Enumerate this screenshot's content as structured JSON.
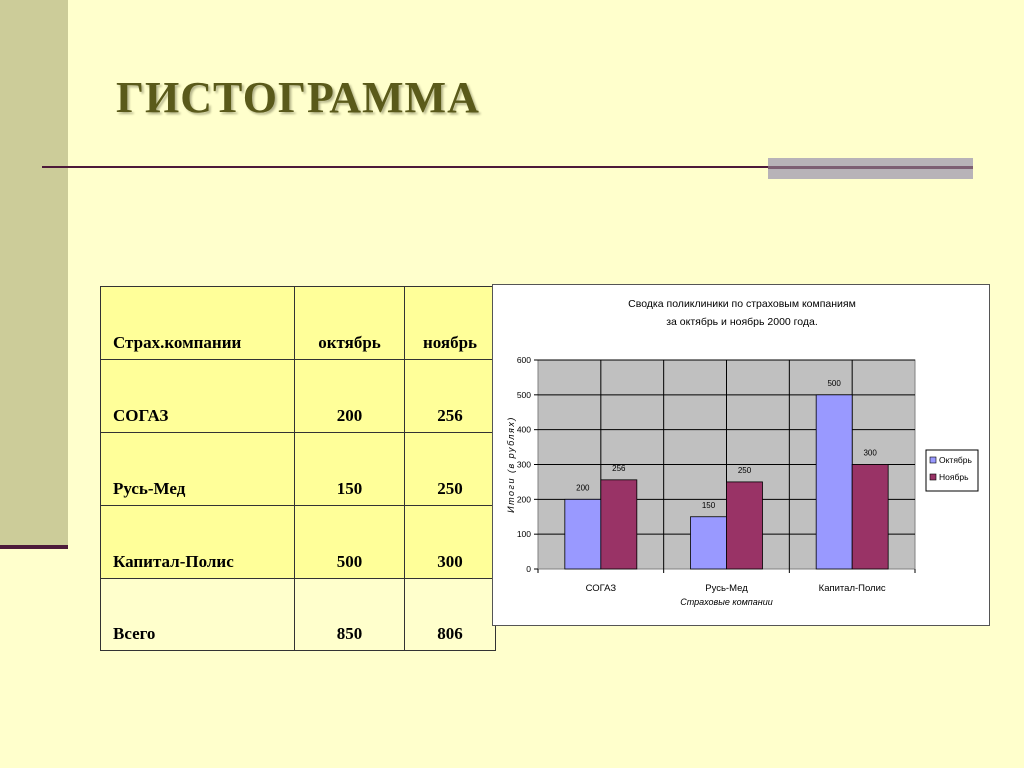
{
  "slide": {
    "title": "ГИСТОГРАММА"
  },
  "table": {
    "headers": [
      "Страх.компании",
      "октябрь",
      "ноябрь"
    ],
    "rows": [
      [
        "СОГАЗ",
        "200",
        "256"
      ],
      [
        "Русь-Мед",
        "150",
        "250"
      ],
      [
        "Капитал-Полис",
        "500",
        "300"
      ]
    ],
    "total": [
      "Всего",
      "850",
      "806"
    ]
  },
  "colors": {
    "oct": "#9999ff",
    "nov": "#993366",
    "plot_bg": "#c0c0c0",
    "accent": "#4d1a3a",
    "band": "#cccc99",
    "highlight": "#ffff99"
  },
  "chart_data": {
    "type": "bar",
    "title": "Сводка поликлиники по страховым компаниям",
    "subtitle": "за октябрь и ноябрь 2000 года.",
    "xlabel": "Страховые компании",
    "ylabel": "Итоги (в рублях)",
    "categories": [
      "СОГАЗ",
      "Русь-Мед",
      "Капитал-Полис"
    ],
    "series": [
      {
        "name": "Октябрь",
        "values": [
          200,
          150,
          500
        ],
        "color": "#9999ff"
      },
      {
        "name": "Ноябрь",
        "values": [
          256,
          250,
          300
        ],
        "color": "#993366"
      }
    ],
    "ylim": [
      0,
      600
    ],
    "yticks": [
      0,
      100,
      200,
      300,
      400,
      500,
      600
    ],
    "grid": true,
    "legend": "right"
  }
}
